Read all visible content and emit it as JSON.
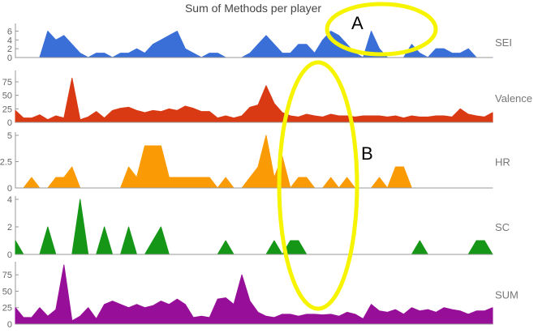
{
  "chart_data": {
    "type": "area",
    "title": "Sum of Methods per player",
    "x_count": 60,
    "series": [
      {
        "name": "SEI",
        "color": "#3a6fd8",
        "yticks": [
          "6",
          "4",
          "2",
          "0"
        ],
        "ylim": [
          0,
          7
        ],
        "values": [
          0,
          0,
          0,
          0,
          6,
          4,
          5,
          3,
          1,
          0,
          1,
          1,
          0,
          1,
          1,
          2,
          1,
          3,
          4,
          5,
          6,
          2,
          1,
          0,
          1,
          1,
          0,
          0,
          0,
          1,
          3,
          5,
          3,
          1,
          1,
          3,
          3,
          1,
          4,
          6,
          5,
          3,
          1,
          0,
          6,
          2,
          0,
          0,
          0,
          3,
          1,
          0,
          2,
          2,
          1,
          1,
          2,
          0,
          0,
          0
        ]
      },
      {
        "name": "Valence",
        "color": "#d93a14",
        "yticks": [
          "75",
          "50",
          "25",
          "0"
        ],
        "ylim": [
          0,
          90
        ],
        "values": [
          22,
          8,
          8,
          14,
          5,
          12,
          8,
          82,
          5,
          10,
          20,
          8,
          22,
          26,
          28,
          22,
          18,
          22,
          20,
          25,
          22,
          30,
          26,
          20,
          20,
          8,
          12,
          8,
          12,
          28,
          32,
          68,
          35,
          18,
          12,
          10,
          15,
          12,
          10,
          15,
          12,
          12,
          10,
          12,
          12,
          12,
          10,
          12,
          8,
          12,
          10,
          10,
          12,
          12,
          10,
          25,
          15,
          12,
          10,
          18
        ]
      },
      {
        "name": "HR",
        "color": "#fa9b06",
        "yticks": [
          "5",
          "2.5",
          "0"
        ],
        "ylim": [
          0,
          5
        ],
        "values": [
          0,
          0,
          1,
          0,
          0,
          1,
          1,
          2,
          0,
          0,
          0,
          0,
          0,
          0,
          2,
          1,
          4,
          4,
          4,
          1,
          1,
          1,
          1,
          1,
          1,
          0,
          1,
          0,
          0,
          1,
          2,
          5,
          1,
          3,
          0,
          1,
          1,
          0,
          0,
          1,
          0,
          1,
          0,
          0,
          0,
          1,
          0,
          2,
          2,
          0,
          0,
          0,
          0,
          0,
          0,
          0,
          0,
          0,
          0,
          0
        ]
      },
      {
        "name": "SC",
        "color": "#169617",
        "yticks": [
          "4",
          "2",
          "0"
        ],
        "ylim": [
          0,
          4
        ],
        "values": [
          1,
          0,
          0,
          0,
          2,
          0,
          0,
          0,
          4,
          0,
          0,
          2,
          0,
          0,
          2,
          0,
          0,
          1,
          2,
          0,
          0,
          0,
          0,
          0,
          0,
          0,
          1,
          0,
          0,
          0,
          0,
          0,
          1,
          0,
          1,
          1,
          0,
          0,
          0,
          0,
          0,
          0,
          0,
          0,
          0,
          0,
          0,
          0,
          0,
          0,
          1,
          0,
          0,
          0,
          0,
          0,
          0,
          1,
          1,
          0
        ]
      },
      {
        "name": "SUM",
        "color": "#970f99",
        "yticks": [
          "75",
          "50",
          "25",
          "0"
        ],
        "ylim": [
          0,
          90
        ],
        "values": [
          25,
          10,
          10,
          25,
          12,
          22,
          90,
          5,
          12,
          25,
          8,
          30,
          35,
          30,
          25,
          30,
          25,
          28,
          35,
          30,
          38,
          30,
          10,
          12,
          10,
          38,
          40,
          30,
          75,
          35,
          18,
          12,
          10,
          15,
          15,
          12,
          15,
          15,
          14,
          15,
          12,
          18,
          15,
          8,
          30,
          20,
          18,
          22,
          15,
          25,
          20,
          22,
          18,
          25,
          22,
          20,
          15,
          20,
          20,
          25
        ]
      }
    ]
  },
  "annotations": {
    "ellipse_color": "#f6f400",
    "marker_a": "A",
    "marker_b": "B"
  }
}
